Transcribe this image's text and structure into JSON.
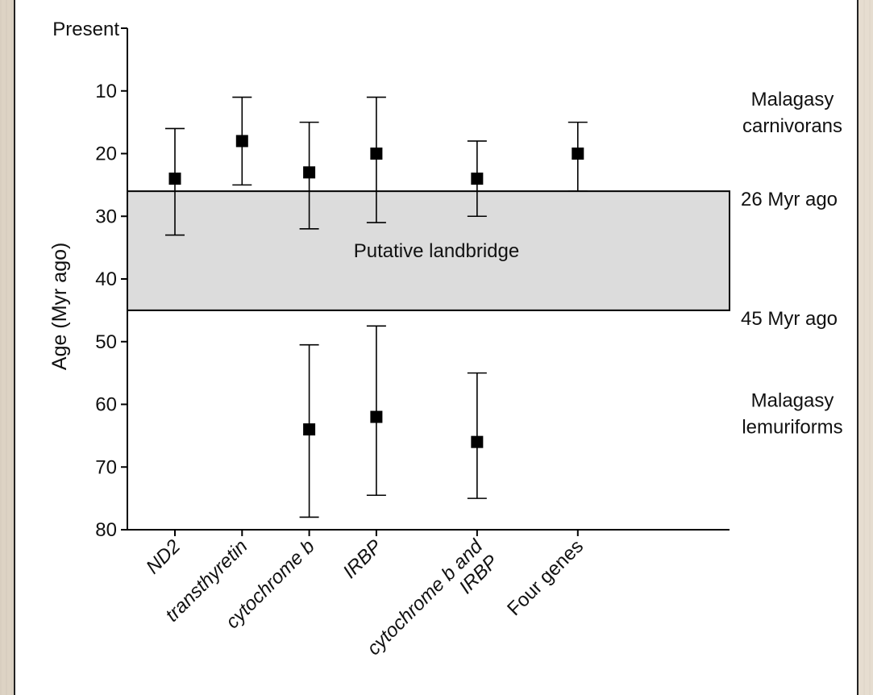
{
  "chart_data": {
    "type": "scatter",
    "ylabel": "Age (Myr ago)",
    "y_top_label": "Present",
    "ylim": [
      0,
      80
    ],
    "y_inverted": true,
    "yticks": [
      10,
      20,
      30,
      40,
      50,
      60,
      70,
      80
    ],
    "categories": [
      "ND2",
      "transthyretin",
      "cytochrome b",
      "IRBP",
      "cytochrome b and IRBP",
      "Four genes"
    ],
    "category_labels_rendered": [
      [
        "ND2"
      ],
      [
        "transthyretin"
      ],
      [
        "cytochrome b"
      ],
      [
        "IRBP"
      ],
      [
        "cytochrome b and",
        "IRBP"
      ],
      [
        "Four genes"
      ]
    ],
    "category_italic": [
      true,
      true,
      true,
      true,
      true,
      false
    ],
    "category_positions": [
      1,
      2,
      3,
      4,
      5.5,
      7
    ],
    "series": [
      {
        "name": "Malagasy carnivorans",
        "points": [
          {
            "category": "ND2",
            "value": 24,
            "low": 16,
            "high": 33
          },
          {
            "category": "transthyretin",
            "value": 18,
            "low": 11,
            "high": 25
          },
          {
            "category": "cytochrome b",
            "value": 23,
            "low": 15,
            "high": 32
          },
          {
            "category": "IRBP",
            "value": 20,
            "low": 11,
            "high": 31
          },
          {
            "category": "cytochrome b and IRBP",
            "value": 24,
            "low": 18,
            "high": 30
          },
          {
            "category": "Four genes",
            "value": 20,
            "low": 15,
            "high": 26
          }
        ]
      },
      {
        "name": "Malagasy lemuriforms",
        "points": [
          {
            "category": "cytochrome b",
            "value": 64,
            "low": 50.5,
            "high": 78
          },
          {
            "category": "IRBP",
            "value": 62,
            "low": 47.5,
            "high": 74.5
          },
          {
            "category": "cytochrome b and IRBP",
            "value": 66,
            "low": 55,
            "high": 75
          }
        ]
      }
    ],
    "band": {
      "label": "Putative landbridge",
      "from": 26,
      "to": 45,
      "color": "#dcdcdc"
    },
    "annotations": [
      {
        "lines": [
          "Malagasy",
          "carnivorans"
        ],
        "y": 13
      },
      {
        "lines": [
          "26 Myr ago"
        ],
        "y": 26
      },
      {
        "lines": [
          "45 Myr ago"
        ],
        "y": 45
      },
      {
        "lines": [
          "Malagasy",
          "lemuriforms"
        ],
        "y": 61
      }
    ],
    "grid": false,
    "marker_color": "#000000"
  }
}
